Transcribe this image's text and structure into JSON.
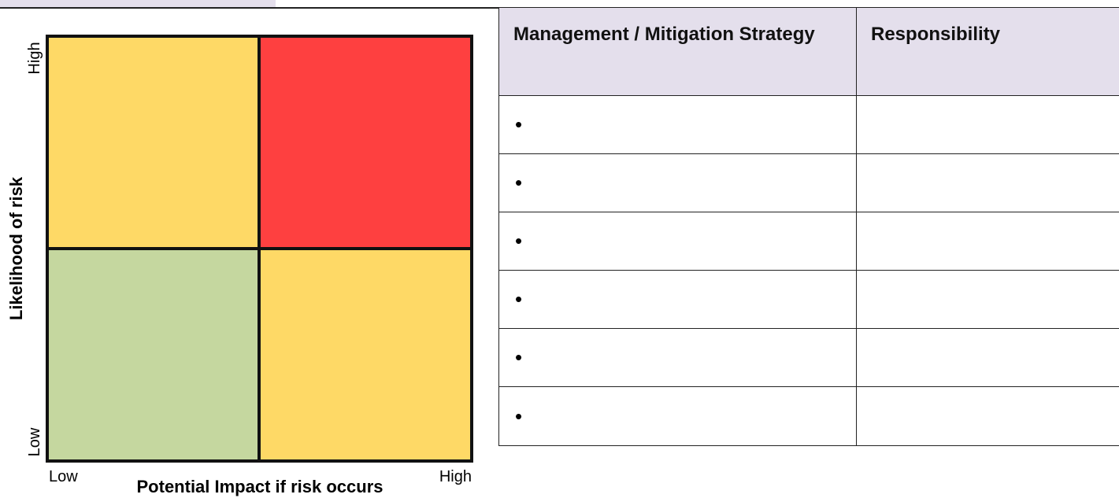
{
  "matrix": {
    "y_axis_label": "Likelihood of risk",
    "y_high": "High",
    "y_low": "Low",
    "x_axis_label": "Potential Impact if risk occurs",
    "x_low": "Low",
    "x_high": "High"
  },
  "table": {
    "headers": [
      "Management / Mitigation Strategy",
      "Responsibility"
    ],
    "rows": [
      "•",
      "•",
      "•",
      "•",
      "•",
      "•"
    ]
  }
}
